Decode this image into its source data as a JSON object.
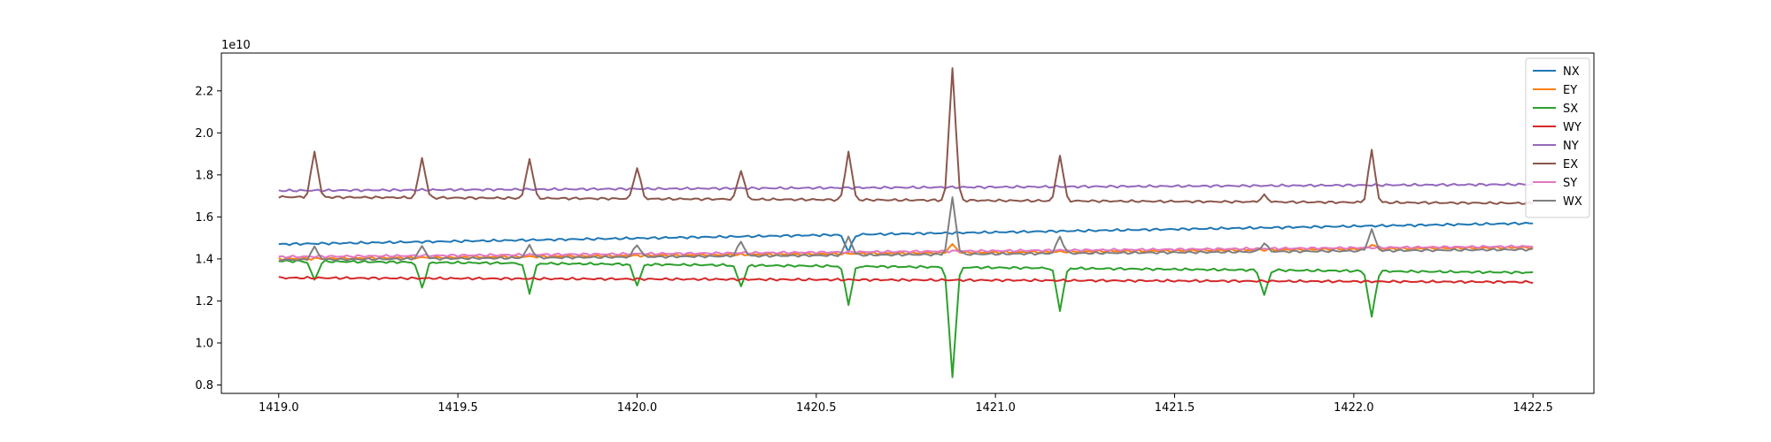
{
  "chart_data": {
    "type": "line",
    "title": "",
    "xlabel": "",
    "ylabel": "",
    "y_offset_label": "1e10",
    "xlim": [
      1418.84,
      1422.67
    ],
    "ylim": [
      0.76,
      2.38
    ],
    "xticks": [
      1419.0,
      1419.5,
      1420.0,
      1420.5,
      1421.0,
      1421.5,
      1422.0,
      1422.5
    ],
    "xtick_labels": [
      "1419.0",
      "1419.5",
      "1420.0",
      "1420.5",
      "1421.0",
      "1421.5",
      "1422.0",
      "1422.5"
    ],
    "yticks": [
      0.8,
      1.0,
      1.2,
      1.4,
      1.6,
      1.8,
      2.0,
      2.2
    ],
    "ytick_labels": [
      "0.8",
      "1.0",
      "1.2",
      "1.4",
      "1.6",
      "1.8",
      "2.0",
      "2.2"
    ],
    "grid": false,
    "legend_position": "upper right",
    "x_start": 1419.0,
    "x_end": 1422.5,
    "spike_positions": [
      1419.1,
      1419.4,
      1419.7,
      1420.0,
      1420.29,
      1420.59,
      1420.88,
      1421.18,
      1421.75,
      1422.05
    ],
    "series": [
      {
        "name": "NX",
        "color": "#1f77b4",
        "base_start": 1.47,
        "base_end": 1.57,
        "spikes": [
          0.0,
          0.0,
          0.0,
          0.0,
          0.0,
          -0.08,
          0.0,
          0.0,
          0.0,
          0.0
        ]
      },
      {
        "name": "EY",
        "color": "#ff7f0e",
        "base_start": 1.4,
        "base_end": 1.455,
        "spikes": [
          0.0,
          0.0,
          0.0,
          0.0,
          0.0,
          0.0,
          0.04,
          0.0,
          0.0,
          0.02
        ]
      },
      {
        "name": "SX",
        "color": "#2ca02c",
        "base_start": 1.39,
        "base_end": 1.335,
        "spikes": [
          -0.09,
          -0.12,
          -0.14,
          -0.1,
          -0.1,
          -0.18,
          -0.52,
          -0.2,
          -0.12,
          -0.22
        ]
      },
      {
        "name": "WY",
        "color": "#d62728",
        "base_start": 1.31,
        "base_end": 1.29,
        "spikes": [
          0.0,
          0.0,
          0.0,
          0.0,
          0.0,
          0.0,
          0.0,
          0.0,
          0.0,
          0.0
        ]
      },
      {
        "name": "NY",
        "color": "#9467bd",
        "base_start": 1.725,
        "base_end": 1.755,
        "spikes": [
          0.0,
          0.0,
          0.0,
          0.0,
          0.0,
          0.0,
          0.0,
          0.0,
          0.0,
          0.0
        ]
      },
      {
        "name": "EX",
        "color": "#8c564b",
        "base_start": 1.695,
        "base_end": 1.665,
        "spikes": [
          0.22,
          0.19,
          0.19,
          0.15,
          0.14,
          0.23,
          0.63,
          0.22,
          0.03,
          0.25
        ]
      },
      {
        "name": "SY",
        "color": "#e377c2",
        "base_start": 1.41,
        "base_end": 1.46,
        "spikes": [
          0.0,
          0.0,
          0.0,
          0.0,
          0.0,
          0.0,
          0.0,
          0.0,
          0.0,
          0.0
        ]
      },
      {
        "name": "WX",
        "color": "#7f7f7f",
        "base_start": 1.395,
        "base_end": 1.445,
        "spikes": [
          0.06,
          0.06,
          0.06,
          0.06,
          0.07,
          0.09,
          0.27,
          0.08,
          0.04,
          0.1
        ]
      }
    ]
  }
}
